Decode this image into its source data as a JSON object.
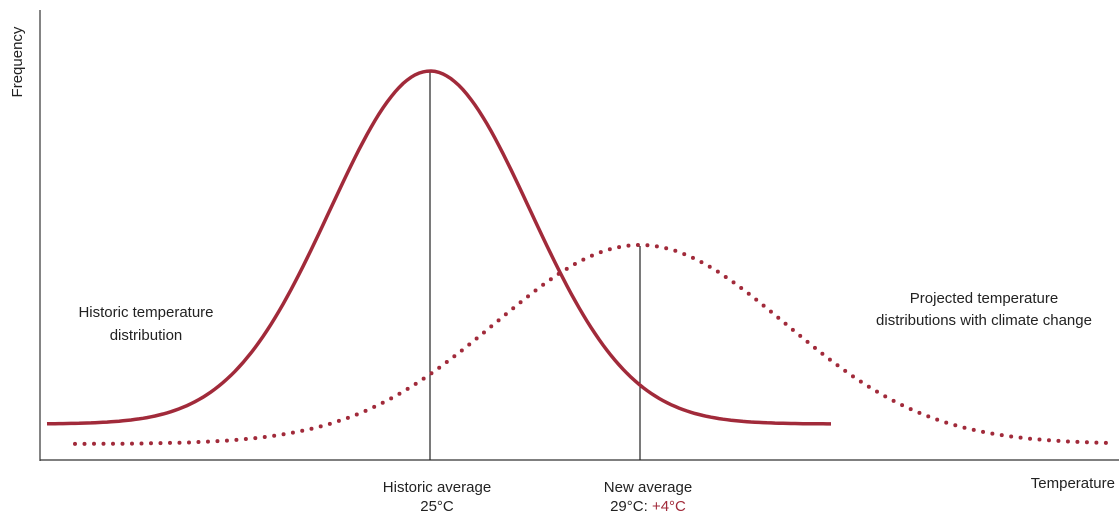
{
  "axes": {
    "y_label": "Frequency",
    "x_label": "Temperature"
  },
  "historic": {
    "label_lines": [
      "Historic temperature",
      "distribution"
    ],
    "average_label": "Historic average",
    "average_value": "25°C"
  },
  "projected": {
    "label_lines": [
      "Projected temperature",
      "distributions with climate change"
    ],
    "average_label": "New average",
    "average_value": "29°C:",
    "change": "+4°C"
  }
}
